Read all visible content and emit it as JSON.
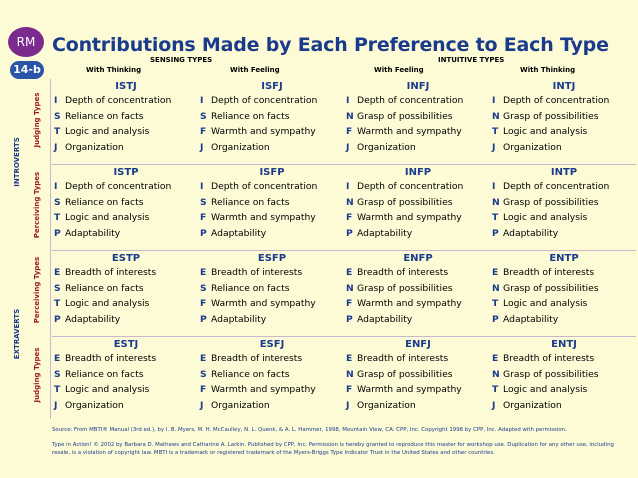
{
  "badge": "RM",
  "slide_no": "14-b",
  "title": "Contributions Made by Each Preference to Each Type",
  "headers": {
    "sensing": "SENSING TYPES",
    "intuitive": "INTUITIVE TYPES",
    "cols": [
      "With Thinking",
      "With Feeling",
      "With Feeling",
      "With Thinking"
    ]
  },
  "side": {
    "introverts": "INTROVERTS",
    "extraverts": "EXTRAVERTS",
    "rows": [
      "Judging Types",
      "Perceiving Types",
      "Perceiving Types",
      "Judging Types"
    ]
  },
  "rows": [
    [
      {
        "type": "ISTJ",
        "lines": [
          [
            "I",
            "Depth of concentration"
          ],
          [
            "S",
            "Reliance on facts"
          ],
          [
            "T",
            "Logic and analysis"
          ],
          [
            "J",
            "Organization"
          ]
        ]
      },
      {
        "type": "ISFJ",
        "lines": [
          [
            "I",
            "Depth of concentration"
          ],
          [
            "S",
            "Reliance on facts"
          ],
          [
            "F",
            "Warmth and sympathy"
          ],
          [
            "J",
            "Organization"
          ]
        ]
      },
      {
        "type": "INFJ",
        "lines": [
          [
            "I",
            "Depth of concentration"
          ],
          [
            "N",
            "Grasp of possibilities"
          ],
          [
            "F",
            "Warmth and sympathy"
          ],
          [
            "J",
            "Organization"
          ]
        ]
      },
      {
        "type": "INTJ",
        "lines": [
          [
            "I",
            "Depth of concentration"
          ],
          [
            "N",
            "Grasp of possibilities"
          ],
          [
            "T",
            "Logic and analysis"
          ],
          [
            "J",
            "Organization"
          ]
        ]
      }
    ],
    [
      {
        "type": "ISTP",
        "lines": [
          [
            "I",
            "Depth of concentration"
          ],
          [
            "S",
            "Reliance on facts"
          ],
          [
            "T",
            "Logic and analysis"
          ],
          [
            "P",
            "Adaptability"
          ]
        ]
      },
      {
        "type": "ISFP",
        "lines": [
          [
            "I",
            "Depth of concentration"
          ],
          [
            "S",
            "Reliance on facts"
          ],
          [
            "F",
            "Warmth and sympathy"
          ],
          [
            "P",
            "Adaptability"
          ]
        ]
      },
      {
        "type": "INFP",
        "lines": [
          [
            "I",
            "Depth of concentration"
          ],
          [
            "N",
            "Grasp of possibilities"
          ],
          [
            "F",
            "Warmth and sympathy"
          ],
          [
            "P",
            "Adaptability"
          ]
        ]
      },
      {
        "type": "INTP",
        "lines": [
          [
            "I",
            "Depth of concentration"
          ],
          [
            "N",
            "Grasp of possibilities"
          ],
          [
            "T",
            "Logic and analysis"
          ],
          [
            "P",
            "Adaptability"
          ]
        ]
      }
    ],
    [
      {
        "type": "ESTP",
        "lines": [
          [
            "E",
            "Breadth of interests"
          ],
          [
            "S",
            "Reliance on facts"
          ],
          [
            "T",
            "Logic and analysis"
          ],
          [
            "P",
            "Adaptability"
          ]
        ]
      },
      {
        "type": "ESFP",
        "lines": [
          [
            "E",
            "Breadth of interests"
          ],
          [
            "S",
            "Reliance on facts"
          ],
          [
            "F",
            "Warmth and sympathy"
          ],
          [
            "P",
            "Adaptability"
          ]
        ]
      },
      {
        "type": "ENFP",
        "lines": [
          [
            "E",
            "Breadth of interests"
          ],
          [
            "N",
            "Grasp of possibilities"
          ],
          [
            "F",
            "Warmth and sympathy"
          ],
          [
            "P",
            "Adaptability"
          ]
        ]
      },
      {
        "type": "ENTP",
        "lines": [
          [
            "E",
            "Breadth of interests"
          ],
          [
            "N",
            "Grasp of possibilities"
          ],
          [
            "T",
            "Logic and analysis"
          ],
          [
            "P",
            "Adaptability"
          ]
        ]
      }
    ],
    [
      {
        "type": "ESTJ",
        "lines": [
          [
            "E",
            "Breadth of interests"
          ],
          [
            "S",
            "Reliance on facts"
          ],
          [
            "T",
            "Logic and analysis"
          ],
          [
            "J",
            "Organization"
          ]
        ]
      },
      {
        "type": "ESFJ",
        "lines": [
          [
            "E",
            "Breadth of interests"
          ],
          [
            "S",
            "Reliance on facts"
          ],
          [
            "F",
            "Warmth and sympathy"
          ],
          [
            "J",
            "Organization"
          ]
        ]
      },
      {
        "type": "ENFJ",
        "lines": [
          [
            "E",
            "Breadth of interests"
          ],
          [
            "N",
            "Grasp of possibilities"
          ],
          [
            "F",
            "Warmth and sympathy"
          ],
          [
            "J",
            "Organization"
          ]
        ]
      },
      {
        "type": "ENTJ",
        "lines": [
          [
            "E",
            "Breadth of interests"
          ],
          [
            "N",
            "Grasp of possibilities"
          ],
          [
            "T",
            "Logic and analysis"
          ],
          [
            "J",
            "Organization"
          ]
        ]
      }
    ]
  ],
  "source": "Source: From MBTI® Manual (3rd ed.), by I. B. Myers, M. H. McCaulley, N. L. Quenk, & A. L. Hammer, 1998, Mountain View, CA: CPP, Inc. Copyright 1998 by CPP, Inc. Adapted with permission.",
  "copyright": "Type in Action! © 2002 by Barbara D. Mathews and Catharine A. Larkin. Published by CPP, Inc. Permission is hereby granted to reproduce this master for workshop use. Duplication for any other use, including resale, is a violation of copyright law. MBTI is a trademark or registered trademark of the Myers-Briggs Type Indicator Trust in the United States and other countries."
}
